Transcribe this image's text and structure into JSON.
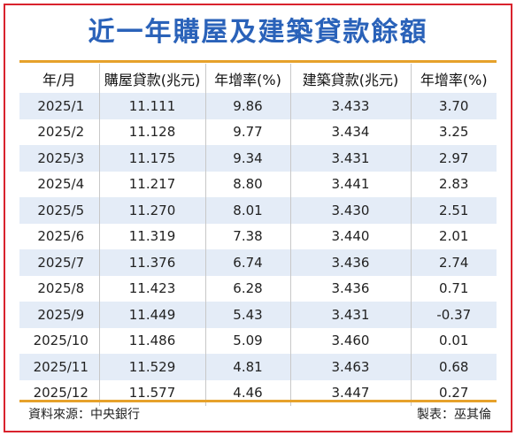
{
  "title": "近一年購屋及建築貸款餘額",
  "columns": [
    "年/月",
    "購屋貸款(兆元)",
    "年增率(%)",
    "建築貸款(兆元)",
    "年增率(%)"
  ],
  "rows": [
    [
      "2025/1",
      "11.111",
      "9.86",
      "3.433",
      "3.70"
    ],
    [
      "2025/2",
      "11.128",
      "9.77",
      "3.434",
      "3.25"
    ],
    [
      "2025/3",
      "11.175",
      "9.34",
      "3.431",
      "2.97"
    ],
    [
      "2025/4",
      "11.217",
      "8.80",
      "3.441",
      "2.83"
    ],
    [
      "2025/5",
      "11.270",
      "8.01",
      "3.430",
      "2.51"
    ],
    [
      "2025/6",
      "11.319",
      "7.38",
      "3.440",
      "2.01"
    ],
    [
      "2025/7",
      "11.376",
      "6.74",
      "3.436",
      "2.74"
    ],
    [
      "2025/8",
      "11.423",
      "6.28",
      "3.436",
      "0.71"
    ],
    [
      "2025/9",
      "11.449",
      "5.43",
      "3.431",
      "-0.37"
    ],
    [
      "2025/10",
      "11.486",
      "5.09",
      "3.460",
      "0.01"
    ],
    [
      "2025/11",
      "11.529",
      "4.81",
      "3.463",
      "0.68"
    ],
    [
      "2025/12",
      "11.577",
      "4.46",
      "3.447",
      "0.27"
    ]
  ],
  "footer": {
    "source": "資料來源：中央銀行",
    "credit": "製表：巫其倫"
  },
  "colors": {
    "title": "#2a62b9",
    "border": "#d9232d",
    "rule": "#e6a12b",
    "stripe": "#e4ecf7"
  }
}
